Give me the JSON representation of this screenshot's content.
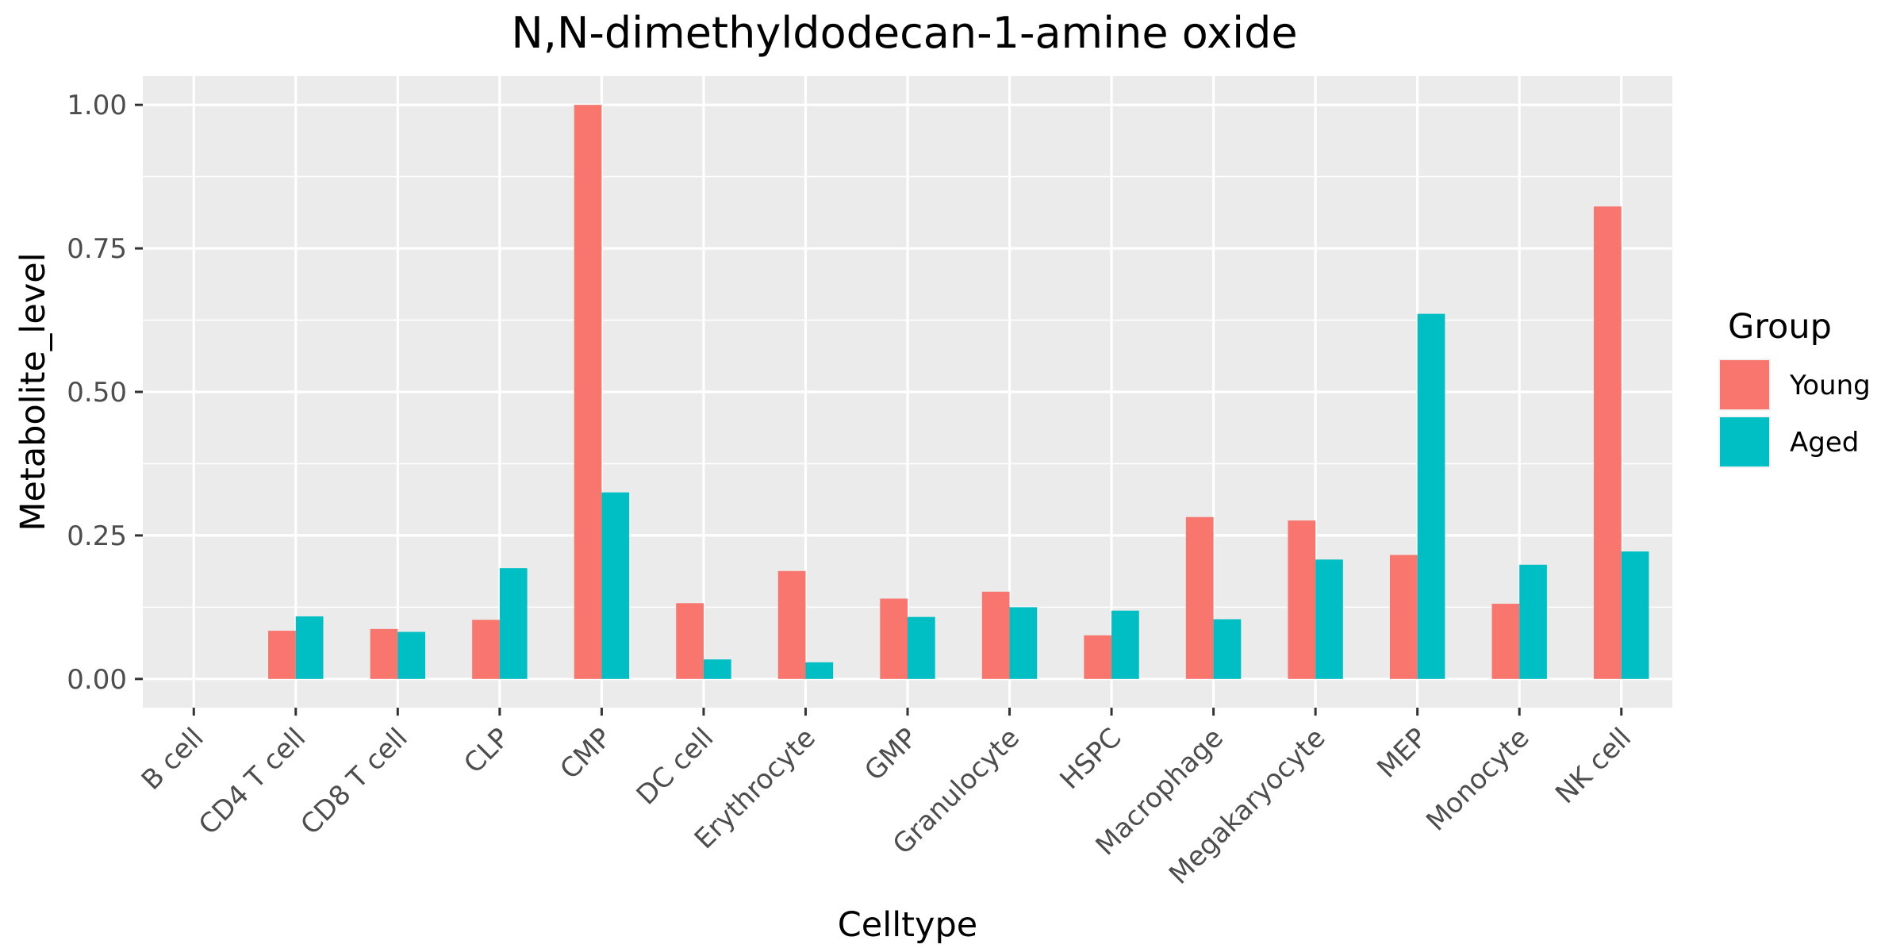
{
  "chart_data": {
    "type": "bar",
    "title": "N,N-dimethyldodecan-1-amine oxide",
    "xlabel": "Celltype",
    "ylabel": "Metabolite_level",
    "categories": [
      "B cell",
      "CD4 T cell",
      "CD8 T cell",
      "CLP",
      "CMP",
      "DC cell",
      "Erythrocyte",
      "GMP",
      "Granulocyte",
      "HSPC",
      "Macrophage",
      "Megakaryocyte",
      "MEP",
      "Monocyte",
      "NK cell"
    ],
    "series": [
      {
        "name": "Young",
        "color": "#F8766D",
        "values": [
          0,
          0.084,
          0.087,
          0.103,
          1.0,
          0.132,
          0.188,
          0.14,
          0.152,
          0.076,
          0.282,
          0.276,
          0.216,
          0.131,
          0.823
        ]
      },
      {
        "name": "Aged",
        "color": "#00BFC4",
        "values": [
          0,
          0.109,
          0.082,
          0.193,
          0.325,
          0.034,
          0.029,
          0.108,
          0.125,
          0.119,
          0.104,
          0.208,
          0.636,
          0.199,
          0.222
        ]
      }
    ],
    "ylim": [
      -0.05,
      1.05
    ],
    "yticks": [
      0,
      0.25,
      0.5,
      0.75,
      1.0
    ],
    "ytick_labels": [
      "0.00",
      "0.25",
      "0.50",
      "0.75",
      "1.00"
    ],
    "grid": true,
    "panel_background": "#EBEBEB",
    "legend": {
      "title": "Group",
      "position": "right",
      "entries": [
        "Young",
        "Aged"
      ]
    }
  }
}
